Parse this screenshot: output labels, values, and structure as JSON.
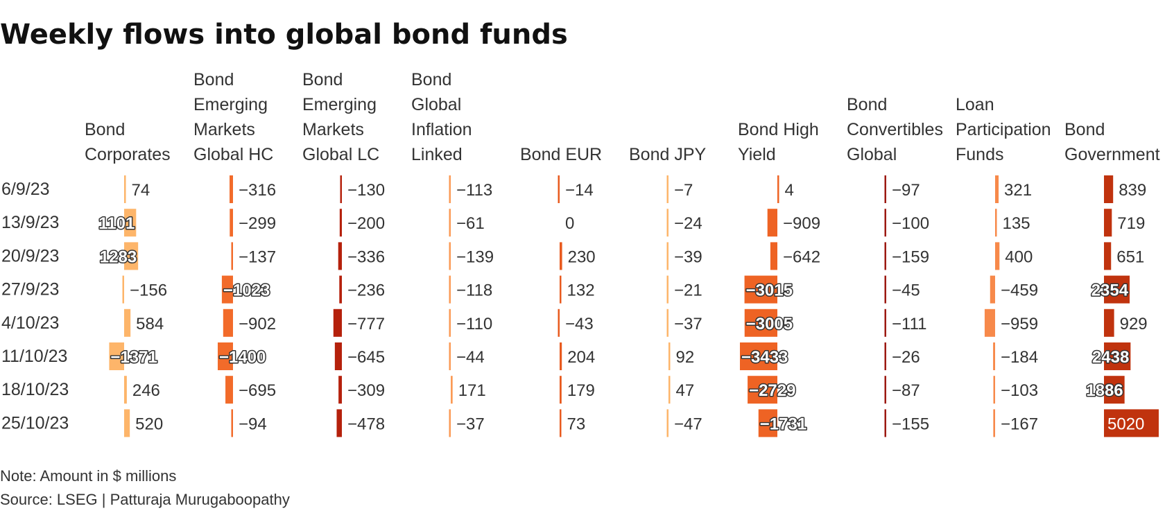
{
  "title": "Weekly flows into global bond funds",
  "footer": {
    "note": "Note: Amount in $ millions",
    "source": "Source: LSEG | Patturaja Murugaboopathy"
  },
  "colors": {
    "Bond Corporates": "#fdb56a",
    "Bond Emerging Markets Global HC": "#f26b2a",
    "Bond Emerging Markets Global LC": "#b5210c",
    "Bond Global Inflation Linked": "#fb9a55",
    "Bond EUR": "#e85a1e",
    "Bond JPY": "#fdb56a",
    "Bond High Yield": "#ee6324",
    "Bond Convertibles Global": "#9c1a12",
    "Loan Participation Funds": "#f7894a",
    "Bond Government": "#c0330e"
  },
  "chart_data": {
    "type": "table",
    "title": "Weekly flows into global bond funds",
    "unit": "$ millions",
    "rows": [
      "6/9/23",
      "13/9/23",
      "20/9/23",
      "27/9/23",
      "4/10/23",
      "11/10/23",
      "18/10/23",
      "25/10/23"
    ],
    "columns": [
      {
        "name": "Bond Corporates",
        "header_lines": [
          "Bond",
          "Corporates"
        ],
        "values": [
          74,
          1101,
          1283,
          -156,
          584,
          -1371,
          246,
          520
        ]
      },
      {
        "name": "Bond Emerging Markets Global HC",
        "header_lines": [
          "Bond",
          "Emerging",
          "Markets",
          "Global HC"
        ],
        "values": [
          -316,
          -299,
          -137,
          -1023,
          -902,
          -1400,
          -695,
          -94
        ]
      },
      {
        "name": "Bond Emerging Markets Global LC",
        "header_lines": [
          "Bond",
          "Emerging",
          "Markets",
          "Global LC"
        ],
        "values": [
          -130,
          -200,
          -336,
          -236,
          -777,
          -645,
          -309,
          -478
        ]
      },
      {
        "name": "Bond Global Inflation Linked",
        "header_lines": [
          "Bond",
          "Global",
          "Inflation",
          "Linked"
        ],
        "values": [
          -113,
          -61,
          -139,
          -118,
          -110,
          -44,
          171,
          -37
        ]
      },
      {
        "name": "Bond EUR",
        "header_lines": [
          "Bond EUR"
        ],
        "values": [
          -14,
          0,
          230,
          132,
          -43,
          204,
          179,
          73
        ]
      },
      {
        "name": "Bond JPY",
        "header_lines": [
          "Bond JPY"
        ],
        "values": [
          -7,
          -24,
          -39,
          -21,
          -37,
          92,
          47,
          -47
        ]
      },
      {
        "name": "Bond High Yield",
        "header_lines": [
          "Bond High",
          "Yield"
        ],
        "values": [
          4,
          -909,
          -642,
          -3015,
          -3005,
          -3433,
          -2729,
          -1731
        ]
      },
      {
        "name": "Bond Convertibles Global",
        "header_lines": [
          "Bond",
          "Convertibles",
          "Global"
        ],
        "values": [
          -97,
          -100,
          -159,
          -45,
          -111,
          -26,
          -87,
          -155
        ]
      },
      {
        "name": "Loan Participation Funds",
        "header_lines": [
          "Loan",
          "Participation",
          "Funds"
        ],
        "values": [
          321,
          135,
          400,
          -459,
          -959,
          -184,
          -103,
          -167
        ]
      },
      {
        "name": "Bond Government",
        "header_lines": [
          "Bond",
          "Government"
        ],
        "values": [
          839,
          719,
          651,
          2354,
          929,
          2438,
          1886,
          5020
        ]
      }
    ]
  }
}
